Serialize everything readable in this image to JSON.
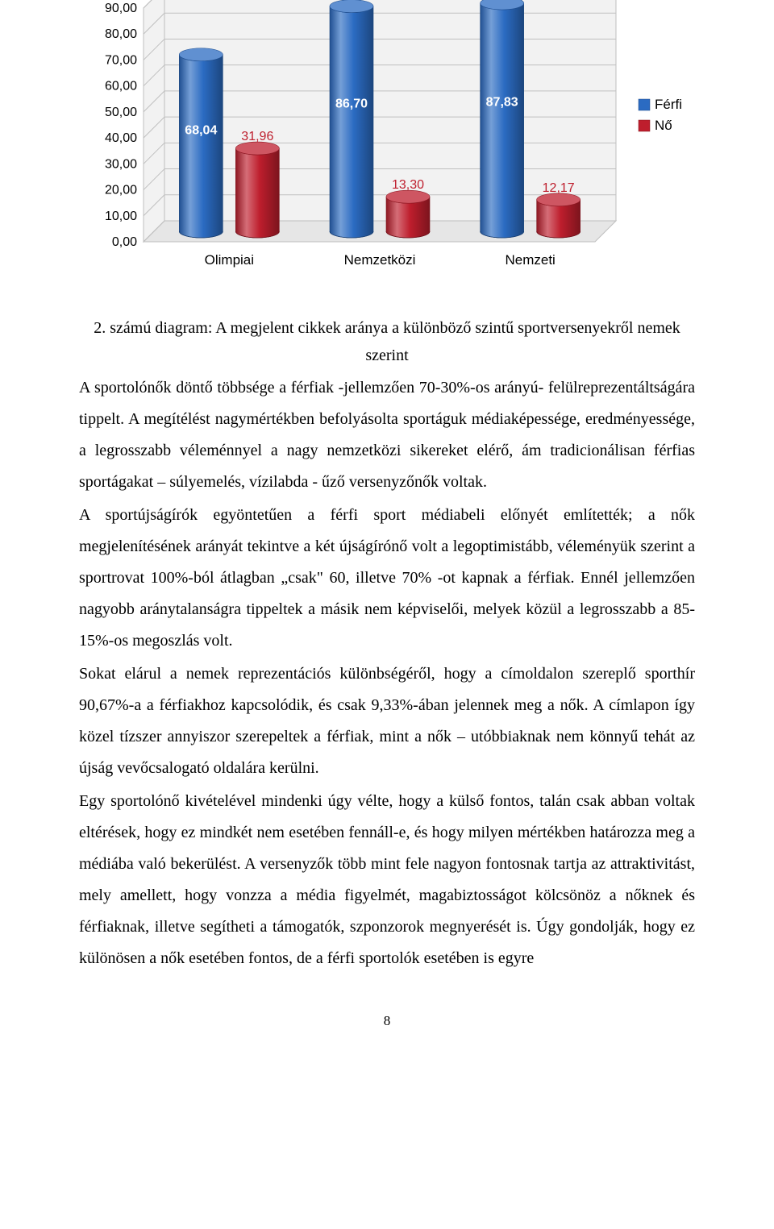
{
  "chart": {
    "type": "bar-3d",
    "categories": [
      "Olimpiai",
      "Nemzetközi",
      "Nemzeti"
    ],
    "series": [
      {
        "name": "Férfi",
        "color": "#2b6bc2",
        "values": [
          68.04,
          86.7,
          87.83
        ],
        "value_labels": [
          "68,04",
          "86,70",
          "87,83"
        ]
      },
      {
        "name": "Nő",
        "color": "#be1e2d",
        "values": [
          31.96,
          13.3,
          12.17
        ],
        "value_labels": [
          "31,96",
          "13,30",
          "12,17"
        ]
      }
    ],
    "y_axis": {
      "min": 0,
      "max": 90,
      "step": 10,
      "tick_labels": [
        "0,00",
        "10,00",
        "20,00",
        "30,00",
        "40,00",
        "50,00",
        "60,00",
        "70,00",
        "80,00",
        "90,00"
      ]
    },
    "label_font_size": 16,
    "tick_font_size": 16,
    "value_label_font_size": 16,
    "category_font_size": 17,
    "legend_font_size": 17,
    "plot_bg": "#ffffff",
    "floor_color": "#e6e6e6",
    "wall_color": "#f2f2f2",
    "wall_border": "#bfbfbf",
    "grid_color": "#bfbfbf",
    "axis_text_color": "#000000",
    "value_label_ferfi_color": "#ffffff",
    "value_label_no_color": "#be1e2d"
  },
  "caption": {
    "line1": "2. számú diagram: A megjelent cikkek aránya a különböző szintű sportversenyekről nemek",
    "line2": "szerint"
  },
  "paragraphs": [
    "A sportolónők döntő többsége a férfiak -jellemzően 70-30%-os arányú- felülreprezentáltságára tippelt. A megítélést nagymértékben befolyásolta sportáguk médiaképessége, eredményessége, a legrosszabb véleménnyel a nagy nemzetközi sikereket elérő, ám tradicionálisan férfias sportágakat – súlyemelés, vízilabda - űző versenyzőnők voltak.",
    "A sportújságírók egyöntetűen a férfi sport médiabeli előnyét említették; a nők megjelenítésének arányát tekintve a két újságírónő volt a legoptimistább, véleményük szerint a sportrovat 100%-ból átlagban „csak\" 60, illetve 70% -ot kapnak a férfiak. Ennél jellemzően nagyobb aránytalanságra tippeltek a másik nem képviselői, melyek közül a legrosszabb a 85-15%-os megoszlás volt.",
    "Sokat elárul a nemek reprezentációs különbségéről, hogy a címoldalon szereplő sporthír 90,67%-a a férfiakhoz kapcsolódik, és csak 9,33%-ában jelennek meg a nők. A címlapon így közel tízszer annyiszor szerepeltek a férfiak, mint a nők – utóbbiaknak nem könnyű tehát az újság vevőcsalogató oldalára kerülni.",
    "Egy sportolónő kivételével mindenki úgy vélte, hogy a külső fontos, talán csak abban voltak eltérések, hogy ez mindkét nem esetében fennáll-e, és hogy milyen mértékben határozza meg a médiába való bekerülést. A versenyzők több mint fele nagyon fontosnak tartja az attraktivitást, mely amellett, hogy vonzza a média figyelmét, magabiztosságot kölcsönöz a nőknek és férfiaknak, illetve segítheti a támogatók, szponzorok megnyerését is. Úgy gondolják, hogy ez különösen a nők esetében fontos, de a férfi sportolók esetében is egyre"
  ],
  "page_number": "8"
}
